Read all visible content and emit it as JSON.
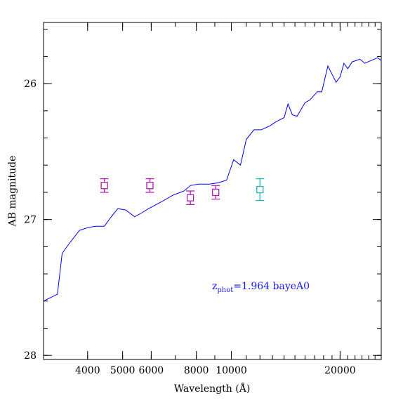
{
  "chart_data": {
    "type": "line",
    "xlabel": "Wavelength (Å)",
    "ylabel": "AB magnitude",
    "x_scale": "log",
    "y_inverted": true,
    "xlim": [
      3020,
      26000
    ],
    "ylim": [
      28.03,
      25.55
    ],
    "grid": false,
    "x_ticks": [
      {
        "value": 4000,
        "label": "4000"
      },
      {
        "value": 5000,
        "label": "5000"
      },
      {
        "value": 6000,
        "label": "6000"
      },
      {
        "value": 8000,
        "label": "8000"
      },
      {
        "value": 10000,
        "label": "10000"
      },
      {
        "value": 20000,
        "label": "20000"
      }
    ],
    "y_ticks": [
      {
        "value": 26,
        "label": "26"
      },
      {
        "value": 27,
        "label": "27"
      },
      {
        "value": 28,
        "label": "28"
      }
    ],
    "annotation": {
      "prefix": "z",
      "subscript": "phot",
      "text": "=1.964  bayeA0",
      "color": "#1a1aff"
    },
    "series": [
      {
        "color": "#0000ff",
        "x": [
          3020,
          3300,
          3400,
          3550,
          3800,
          4000,
          4200,
          4450,
          4650,
          4850,
          5100,
          5400,
          5650,
          5900,
          6400,
          6900,
          7400,
          7700,
          8100,
          8700,
          9200,
          9700,
          10150,
          10600,
          11000,
          11550,
          12100,
          12800,
          13300,
          14000,
          14350,
          14750,
          15200,
          16000,
          16500,
          17300,
          17800,
          18500,
          19500,
          20000,
          20500,
          21000,
          21600,
          22700,
          23400,
          25400,
          26000
        ],
        "y": [
          27.6,
          27.55,
          27.25,
          27.18,
          27.08,
          27.06,
          27.05,
          27.05,
          26.98,
          26.92,
          26.93,
          26.98,
          26.95,
          26.92,
          26.87,
          26.82,
          26.79,
          26.75,
          26.74,
          26.74,
          26.73,
          26.71,
          26.56,
          26.6,
          26.41,
          26.34,
          26.34,
          26.31,
          26.28,
          26.25,
          26.15,
          26.23,
          26.24,
          26.14,
          26.12,
          26.06,
          26.06,
          25.87,
          25.99,
          25.95,
          25.85,
          25.89,
          25.84,
          25.82,
          25.85,
          25.81,
          25.83
        ]
      }
    ],
    "points": [
      {
        "x": 4450,
        "y": 26.75,
        "err": 0.05,
        "color": "#b01eb0"
      },
      {
        "x": 5950,
        "y": 26.75,
        "err": 0.05,
        "color": "#b01eb0"
      },
      {
        "x": 7700,
        "y": 26.84,
        "err": 0.05,
        "color": "#b01eb0"
      },
      {
        "x": 9050,
        "y": 26.8,
        "err": 0.05,
        "color": "#b01eb0"
      },
      {
        "x": 12000,
        "y": 26.78,
        "err": 0.08,
        "color": "#22b8b8"
      }
    ]
  }
}
